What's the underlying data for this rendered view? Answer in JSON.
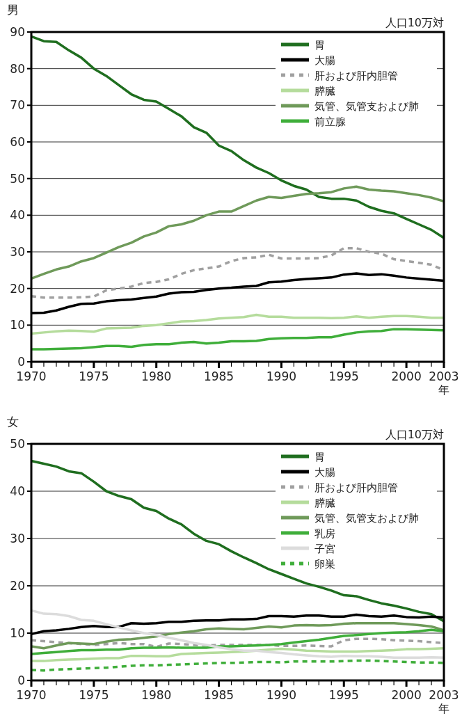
{
  "chart_data": [
    {
      "type": "line",
      "title": "男",
      "ylabel": "人口10万対",
      "xlabel": "年",
      "x": [
        1970,
        1971,
        1972,
        1973,
        1974,
        1975,
        1976,
        1977,
        1978,
        1979,
        1980,
        1981,
        1982,
        1983,
        1984,
        1985,
        1986,
        1987,
        1988,
        1989,
        1990,
        1991,
        1992,
        1993,
        1994,
        1995,
        1996,
        1997,
        1998,
        1999,
        2000,
        2001,
        2002,
        2003
      ],
      "xlim": [
        1970,
        2003
      ],
      "ylim": [
        0,
        90
      ],
      "yticks": [
        0,
        10,
        20,
        30,
        40,
        50,
        60,
        70,
        80,
        90
      ],
      "xticks": [
        1970,
        {
          "value": 1971,
          "label": null
        },
        {
          "value": 1972,
          "label": null
        },
        {
          "value": 1973,
          "label": null
        },
        {
          "value": 1974,
          "label": null
        },
        1975,
        {
          "value": 1976,
          "label": null
        },
        {
          "value": 1977,
          "label": null
        },
        {
          "value": 1978,
          "label": null
        },
        {
          "value": 1979,
          "label": null
        },
        1980,
        {
          "value": 1981,
          "label": null
        },
        {
          "value": 1982,
          "label": null
        },
        {
          "value": 1983,
          "label": null
        },
        {
          "value": 1984,
          "label": null
        },
        1985,
        {
          "value": 1986,
          "label": null
        },
        {
          "value": 1987,
          "label": null
        },
        {
          "value": 1988,
          "label": null
        },
        {
          "value": 1989,
          "label": null
        },
        1990,
        {
          "value": 1991,
          "label": null
        },
        {
          "value": 1992,
          "label": null
        },
        {
          "value": 1993,
          "label": null
        },
        {
          "value": 1994,
          "label": null
        },
        1995,
        {
          "value": 1996,
          "label": null
        },
        {
          "value": 1997,
          "label": null
        },
        {
          "value": 1998,
          "label": null
        },
        {
          "value": 1999,
          "label": null
        },
        2000,
        {
          "value": 2001,
          "label": null
        },
        {
          "value": 2002,
          "label": null
        },
        2003
      ],
      "grid": "y",
      "legend": "top right",
      "series": [
        {
          "name": "胃",
          "color": "#1f6e1f",
          "values": [
            88.8,
            87.5,
            87.3,
            85,
            83,
            80,
            78,
            75.5,
            73,
            71.5,
            71,
            69,
            67,
            64,
            62.5,
            59,
            57.5,
            55,
            53,
            51.5,
            49.5,
            48,
            47,
            45,
            44.5,
            44.5,
            44,
            42.3,
            41.2,
            40.5,
            39,
            37.5,
            36,
            33.8
          ]
        },
        {
          "name": "大腸",
          "color": "#000000",
          "values": [
            13.3,
            13.4,
            14,
            15,
            15.8,
            15.9,
            16.5,
            16.8,
            17,
            17.4,
            17.8,
            18.6,
            19,
            19.1,
            19.6,
            20,
            20.2,
            20.5,
            20.7,
            21.7,
            21.9,
            22.3,
            22.6,
            22.8,
            23,
            23.8,
            24.1,
            23.7,
            23.9,
            23.5,
            23,
            22.7,
            22.4,
            22.1
          ]
        },
        {
          "name": "肝および肝内胆管",
          "color": "#a0a0a0",
          "line_style": "dashed",
          "values": [
            17.9,
            17.5,
            17.5,
            17.5,
            17.6,
            17.8,
            19.5,
            20,
            20.5,
            21.5,
            21.8,
            22.5,
            24,
            25,
            25.5,
            26,
            27.5,
            28.3,
            28.5,
            29.2,
            28.2,
            28.2,
            28.2,
            28.3,
            29,
            31,
            31,
            30,
            29.5,
            28,
            27.5,
            27,
            26.5,
            25
          ]
        },
        {
          "name": "膵臓",
          "color": "#b5dc9c",
          "values": [
            7.7,
            8,
            8.3,
            8.5,
            8.4,
            8.2,
            9.1,
            9.2,
            9.3,
            9.8,
            10,
            10.5,
            11,
            11.1,
            11.4,
            11.8,
            12,
            12.2,
            12.8,
            12.3,
            12.3,
            12,
            12,
            12,
            11.9,
            12,
            12.4,
            12,
            12.3,
            12.5,
            12.5,
            12.3,
            12,
            12
          ]
        },
        {
          "name": "気管、気管支および肺",
          "color": "#6f9a5a",
          "values": [
            22.7,
            24,
            25.2,
            26,
            27.4,
            28.3,
            29.8,
            31.3,
            32.5,
            34.2,
            35.3,
            37,
            37.5,
            38.5,
            40,
            41,
            41,
            42.5,
            44,
            45,
            44.7,
            45.3,
            45.8,
            46,
            46.3,
            47.3,
            47.8,
            47,
            46.7,
            46.5,
            46,
            45.5,
            44.8,
            43.8
          ]
        },
        {
          "name": "前立腺",
          "color": "#3fae3a",
          "values": [
            3.4,
            3.4,
            3.5,
            3.6,
            3.7,
            4,
            4.3,
            4.3,
            4.1,
            4.6,
            4.8,
            4.8,
            5.2,
            5.4,
            5,
            5.2,
            5.6,
            5.6,
            5.7,
            6.2,
            6.4,
            6.5,
            6.5,
            6.7,
            6.7,
            7.4,
            8,
            8.3,
            8.4,
            8.9,
            8.9,
            8.8,
            8.7,
            8.6
          ]
        }
      ]
    },
    {
      "type": "line",
      "title": "女",
      "ylabel": "人口10万対",
      "xlabel": "年",
      "x": [
        1970,
        1971,
        1972,
        1973,
        1974,
        1975,
        1976,
        1977,
        1978,
        1979,
        1980,
        1981,
        1982,
        1983,
        1984,
        1985,
        1986,
        1987,
        1988,
        1989,
        1990,
        1991,
        1992,
        1993,
        1994,
        1995,
        1996,
        1997,
        1998,
        1999,
        2000,
        2001,
        2002,
        2003
      ],
      "xlim": [
        1970,
        2003
      ],
      "ylim": [
        0,
        50
      ],
      "yticks": [
        0,
        10,
        20,
        30,
        40,
        50
      ],
      "xticks": [
        1970,
        {
          "value": 1971,
          "label": null
        },
        {
          "value": 1972,
          "label": null
        },
        {
          "value": 1973,
          "label": null
        },
        {
          "value": 1974,
          "label": null
        },
        1975,
        {
          "value": 1976,
          "label": null
        },
        {
          "value": 1977,
          "label": null
        },
        {
          "value": 1978,
          "label": null
        },
        {
          "value": 1979,
          "label": null
        },
        1980,
        {
          "value": 1981,
          "label": null
        },
        {
          "value": 1982,
          "label": null
        },
        {
          "value": 1983,
          "label": null
        },
        {
          "value": 1984,
          "label": null
        },
        1985,
        {
          "value": 1986,
          "label": null
        },
        {
          "value": 1987,
          "label": null
        },
        {
          "value": 1988,
          "label": null
        },
        {
          "value": 1989,
          "label": null
        },
        1990,
        {
          "value": 1991,
          "label": null
        },
        {
          "value": 1992,
          "label": null
        },
        {
          "value": 1993,
          "label": null
        },
        {
          "value": 1994,
          "label": null
        },
        1995,
        {
          "value": 1996,
          "label": null
        },
        {
          "value": 1997,
          "label": null
        },
        {
          "value": 1998,
          "label": null
        },
        {
          "value": 1999,
          "label": null
        },
        2000,
        {
          "value": 2001,
          "label": null
        },
        {
          "value": 2002,
          "label": null
        },
        2003
      ],
      "grid": "y",
      "legend": "top right",
      "series": [
        {
          "name": "胃",
          "color": "#1f6e1f",
          "values": [
            46.4,
            45.8,
            45.2,
            44.2,
            43.8,
            42,
            40,
            39,
            38.3,
            36.5,
            35.8,
            34.2,
            33,
            31,
            29.5,
            28.8,
            27.3,
            26,
            24.8,
            23.5,
            22.5,
            21.5,
            20.5,
            19.8,
            19,
            18,
            17.8,
            17,
            16.3,
            15.8,
            15.2,
            14.5,
            14,
            12.5
          ]
        },
        {
          "name": "大腸",
          "color": "#000000",
          "values": [
            9.8,
            10.4,
            10.6,
            10.9,
            11.3,
            11.5,
            11.3,
            11.3,
            12.1,
            12,
            12.1,
            12.4,
            12.4,
            12.6,
            12.7,
            12.7,
            12.9,
            12.9,
            13,
            13.6,
            13.6,
            13.5,
            13.7,
            13.7,
            13.5,
            13.5,
            13.9,
            13.6,
            13.5,
            13.7,
            13.4,
            13.3,
            13.5,
            13.3
          ]
        },
        {
          "name": "肝および肝内胆管",
          "color": "#a0a0a0",
          "line_style": "dashed",
          "values": [
            8.5,
            8.3,
            8.1,
            7.9,
            7.7,
            7.5,
            7.7,
            7.9,
            7.7,
            7.7,
            7.1,
            7.8,
            7.7,
            7.5,
            7.4,
            7.5,
            7.5,
            7.5,
            7.5,
            7.5,
            7.3,
            7.3,
            7.4,
            7.3,
            7.2,
            8.5,
            8.8,
            8.8,
            8.7,
            8.5,
            8.4,
            8.3,
            8.1,
            7.9
          ]
        },
        {
          "name": "膵臓",
          "color": "#b5dc9c",
          "values": [
            4.1,
            4.1,
            4.3,
            4.4,
            4.5,
            4.6,
            4.7,
            4.7,
            5.2,
            5.2,
            5.1,
            5.1,
            5.6,
            5.7,
            5.8,
            5.9,
            6,
            6.1,
            6.3,
            6.5,
            6.7,
            6.5,
            6.3,
            6.2,
            6.1,
            6.1,
            6.1,
            6.2,
            6.3,
            6.4,
            6.6,
            6.6,
            6.7,
            6.8
          ]
        },
        {
          "name": "気管、気管支および肺",
          "color": "#6f9a5a",
          "values": [
            7.2,
            6.8,
            7.4,
            7.9,
            7.8,
            7.7,
            8.2,
            8.6,
            8.7,
            9,
            9.3,
            9.8,
            10.1,
            10.4,
            10.8,
            11,
            10.9,
            10.8,
            11.1,
            11.4,
            11.2,
            11.6,
            11.7,
            11.6,
            11.7,
            12,
            12.1,
            12.1,
            12.1,
            12.1,
            11.9,
            11.7,
            11.4,
            10.6
          ]
        },
        {
          "name": "乳房",
          "color": "#3fae3a",
          "values": [
            5.6,
            5.8,
            6,
            6.2,
            6.4,
            6.4,
            6.5,
            6.5,
            6.8,
            6.9,
            6.9,
            7,
            6.9,
            6.9,
            6.9,
            7.2,
            7.2,
            7.3,
            7.4,
            7.5,
            7.7,
            8,
            8.3,
            8.6,
            9,
            9.4,
            9.6,
            9.8,
            10,
            10.1,
            10.2,
            10.4,
            10.7,
            10.4
          ]
        },
        {
          "name": "子宮",
          "color": "#dcdcdc",
          "values": [
            14.8,
            14.1,
            14,
            13.6,
            12.8,
            12.6,
            11.9,
            11.2,
            10.6,
            10,
            9.6,
            9,
            8.5,
            7.9,
            7.5,
            7,
            6.6,
            6.3,
            6.3,
            6,
            5.8,
            5.5,
            5.3,
            5.1,
            5,
            5.2,
            5.1,
            5.1,
            5,
            4.8,
            4.8,
            4.8,
            4.9,
            4.8
          ]
        },
        {
          "name": "卵巣",
          "color": "#3fae3a",
          "line_style": "dashed",
          "values": [
            2.2,
            2.1,
            2.3,
            2.4,
            2.5,
            2.6,
            2.7,
            2.9,
            3.1,
            3.2,
            3.2,
            3.3,
            3.4,
            3.5,
            3.6,
            3.7,
            3.7,
            3.8,
            3.9,
            3.9,
            3.8,
            4,
            4,
            4,
            4,
            4.1,
            4.2,
            4.2,
            4.1,
            4,
            3.9,
            3.8,
            3.8,
            3.7
          ]
        }
      ]
    }
  ]
}
